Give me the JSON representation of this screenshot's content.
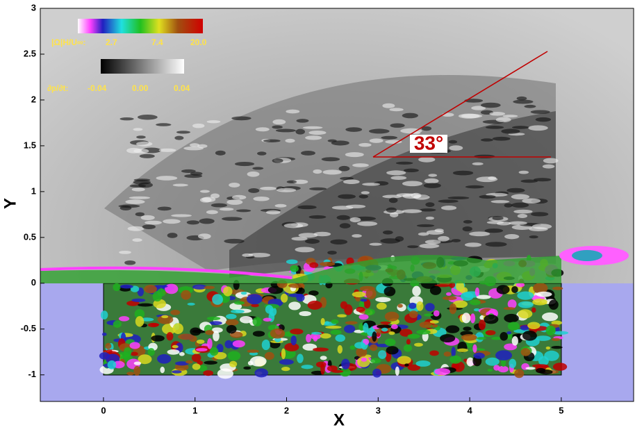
{
  "chart_data": {
    "type": "contour",
    "x_label": "X",
    "y_label": "Y",
    "xlim": [
      -0.69,
      5.79
    ],
    "ylim": [
      -1.29,
      3
    ],
    "xticks": [
      0,
      1,
      2,
      3,
      4,
      5
    ],
    "yticks": [
      -1,
      -0.5,
      0,
      0.5,
      1,
      1.5,
      2,
      2.5,
      3
    ],
    "annotation": "33°",
    "colorbars": [
      {
        "label": "|Ω|H/U∞:",
        "ticks": [
          "2.7",
          "7.4",
          "20.0"
        ]
      },
      {
        "label": "∂p/∂t:",
        "ticks": [
          "-0.04",
          "0.00",
          "0.04"
        ]
      }
    ]
  }
}
